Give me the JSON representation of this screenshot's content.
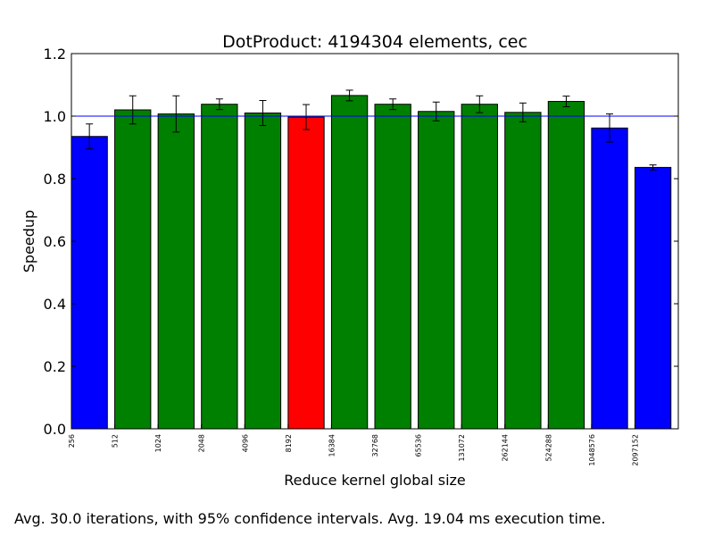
{
  "chart_data": {
    "type": "bar",
    "title": "DotProduct: 4194304 elements, cec",
    "xlabel": "Reduce kernel global size",
    "ylabel": "Speedup",
    "ylim": [
      0,
      1.2
    ],
    "yticks": [
      "0.0",
      "0.2",
      "0.4",
      "0.6",
      "0.8",
      "1.0",
      "1.2"
    ],
    "reference_line": 1.0,
    "grid": false,
    "categories": [
      "256",
      "512",
      "1024",
      "2048",
      "4096",
      "8192",
      "16384",
      "32768",
      "65536",
      "131072",
      "262144",
      "524288",
      "1048576",
      "2097152"
    ],
    "values": [
      0.935,
      1.02,
      1.007,
      1.038,
      1.01,
      0.997,
      1.066,
      1.038,
      1.015,
      1.038,
      1.012,
      1.047,
      0.962,
      0.836
    ],
    "errors": [
      0.04,
      0.045,
      0.058,
      0.017,
      0.04,
      0.04,
      0.017,
      0.017,
      0.03,
      0.027,
      0.03,
      0.017,
      0.045,
      0.008
    ],
    "colors": [
      "#0000ff",
      "#008000",
      "#008000",
      "#008000",
      "#008000",
      "#ff0000",
      "#008000",
      "#008000",
      "#008000",
      "#008000",
      "#008000",
      "#008000",
      "#0000ff",
      "#0000ff"
    ]
  },
  "footnote": "Avg. 30.0 iterations, with 95% confidence intervals. Avg. 19.04 ms execution time."
}
